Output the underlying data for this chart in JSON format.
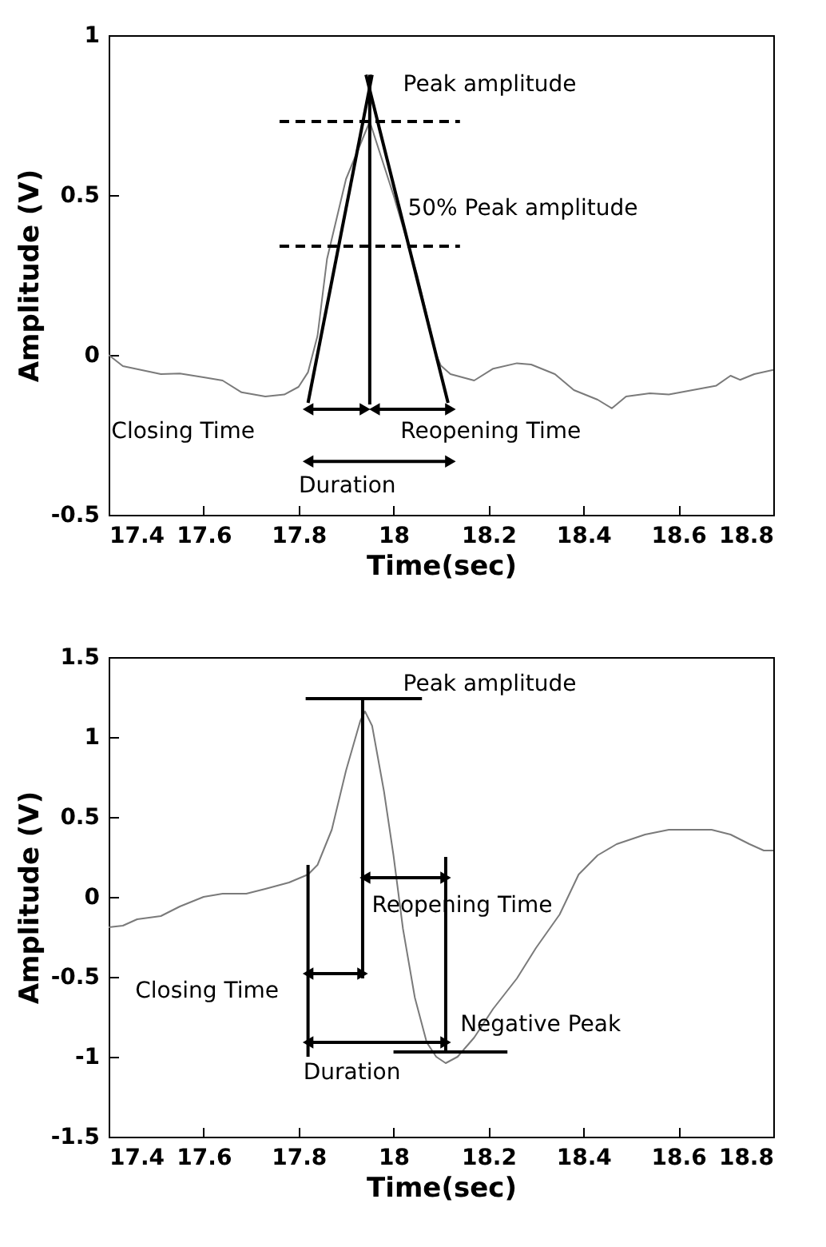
{
  "chart_data": [
    {
      "type": "line",
      "xlabel": "Time(sec)",
      "ylabel": "Amplitude (V)",
      "xlim": [
        17.4,
        18.8
      ],
      "ylim": [
        -0.5,
        1
      ],
      "xticks": [
        17.4,
        17.6,
        17.8,
        18,
        18.2,
        18.4,
        18.6,
        18.8
      ],
      "yticks": [
        -0.5,
        0,
        0.5,
        1
      ],
      "series": [
        {
          "color": "#7a7a7a",
          "x": [
            17.4,
            17.43,
            17.51,
            17.55,
            17.6,
            17.64,
            17.68,
            17.73,
            17.77,
            17.8,
            17.82,
            17.84,
            17.86,
            17.9,
            17.95,
            18.0,
            18.05,
            18.09,
            18.1,
            18.12,
            18.17,
            18.21,
            18.26,
            18.29,
            18.34,
            18.38,
            18.43,
            18.46,
            18.49,
            18.54,
            18.58,
            18.63,
            18.68,
            18.71,
            18.73,
            18.76,
            18.8
          ],
          "values": [
            0.0,
            -0.035,
            -0.06,
            -0.058,
            -0.07,
            -0.08,
            -0.117,
            -0.13,
            -0.124,
            -0.1,
            -0.054,
            0.06,
            0.3,
            0.55,
            0.73,
            0.5,
            0.25,
            0.0,
            -0.034,
            -0.06,
            -0.08,
            -0.043,
            -0.026,
            -0.03,
            -0.06,
            -0.11,
            -0.14,
            -0.167,
            -0.13,
            -0.12,
            -0.124,
            -0.11,
            -0.096,
            -0.065,
            -0.078,
            -0.06,
            -0.047
          ]
        },
        {
          "color": "#000000",
          "x": [
            17.82,
            17.955
          ],
          "values": [
            -0.15,
            0.876
          ]
        },
        {
          "color": "#000000",
          "x": [
            17.942,
            18.115
          ],
          "values": [
            0.876,
            -0.15
          ]
        },
        {
          "color": "#000000",
          "x": [
            17.95,
            17.95
          ],
          "values": [
            0.876,
            -0.155
          ]
        },
        {
          "color": "#000000",
          "line_style": "dashed",
          "x": [
            17.76,
            18.14
          ],
          "values": [
            0.73,
            0.73
          ]
        },
        {
          "color": "#000000",
          "line_style": "dashed",
          "x": [
            17.76,
            18.14
          ],
          "values": [
            0.34,
            0.34
          ]
        },
        {
          "color": "#000000",
          "marker": "triangle",
          "x": [
            17.82,
            17.94
          ],
          "values": [
            -0.17,
            -0.17
          ]
        },
        {
          "color": "#000000",
          "marker": "triangle",
          "x": [
            17.96,
            18.12
          ],
          "values": [
            -0.17,
            -0.17
          ]
        },
        {
          "color": "#000000",
          "marker": "triangle",
          "x": [
            17.82,
            18.12
          ],
          "values": [
            -0.333,
            -0.333
          ]
        }
      ],
      "annotations": [
        "Peak amplitude",
        "50% Peak amplitude",
        "Closing Time",
        "Reopening Time",
        "Duration"
      ]
    },
    {
      "type": "line",
      "xlabel": "Time(sec)",
      "ylabel": "Amplitude (V)",
      "xlim": [
        17.4,
        18.8
      ],
      "ylim": [
        -1.5,
        1.5
      ],
      "xticks": [
        17.4,
        17.6,
        17.8,
        18,
        18.2,
        18.4,
        18.6,
        18.8
      ],
      "yticks": [
        -1.5,
        -1,
        -0.5,
        0,
        0.5,
        1,
        1.5
      ],
      "series": [
        {
          "color": "#7a7a7a",
          "x": [
            17.4,
            17.43,
            17.46,
            17.51,
            17.55,
            17.6,
            17.64,
            17.69,
            17.73,
            17.78,
            17.82,
            17.84,
            17.87,
            17.9,
            17.93,
            17.94,
            17.955,
            17.98,
            18.0,
            18.02,
            18.045,
            18.07,
            18.09,
            18.11,
            18.135,
            18.17,
            18.21,
            18.26,
            18.3,
            18.35,
            18.39,
            18.43,
            18.47,
            18.53,
            18.58,
            18.63,
            18.67,
            18.71,
            18.75,
            18.78,
            18.8
          ],
          "values": [
            -0.19,
            -0.18,
            -0.14,
            -0.12,
            -0.06,
            0,
            0.02,
            0.02,
            0.05,
            0.09,
            0.14,
            0.2,
            0.42,
            0.79,
            1.1,
            1.16,
            1.07,
            0.66,
            0.26,
            -0.2,
            -0.63,
            -0.91,
            -1.0,
            -1.04,
            -1.0,
            -0.88,
            -0.7,
            -0.51,
            -0.32,
            -0.11,
            0.14,
            0.26,
            0.33,
            0.39,
            0.42,
            0.42,
            0.42,
            0.39,
            0.33,
            0.29,
            0.29
          ]
        },
        {
          "color": "#000000",
          "x": [
            17.815,
            18.06
          ],
          "values": [
            1.24,
            1.24
          ]
        },
        {
          "color": "#000000",
          "x": [
            17.935,
            17.935
          ],
          "values": [
            1.24,
            -0.51
          ]
        },
        {
          "color": "#000000",
          "x": [
            17.82,
            17.82
          ],
          "values": [
            0.2,
            -1.0
          ]
        },
        {
          "color": "#000000",
          "x": [
            18.11,
            18.11
          ],
          "values": [
            0.25,
            -0.97
          ]
        },
        {
          "color": "#000000",
          "x": [
            18.0,
            18.24
          ],
          "values": [
            -0.97,
            -0.97
          ]
        },
        {
          "color": "#000000",
          "marker": "triangle",
          "x": [
            17.94,
            18.11
          ],
          "values": [
            0.12,
            0.12
          ]
        },
        {
          "color": "#000000",
          "marker": "triangle",
          "x": [
            17.82,
            17.935
          ],
          "values": [
            -0.48,
            -0.48
          ]
        },
        {
          "color": "#000000",
          "marker": "triangle",
          "x": [
            17.82,
            18.11
          ],
          "values": [
            -0.91,
            -0.91
          ]
        }
      ],
      "annotations": [
        "Peak amplitude",
        "Reopening Time",
        "Closing Time",
        "Negative Peak",
        "Duration"
      ]
    }
  ]
}
